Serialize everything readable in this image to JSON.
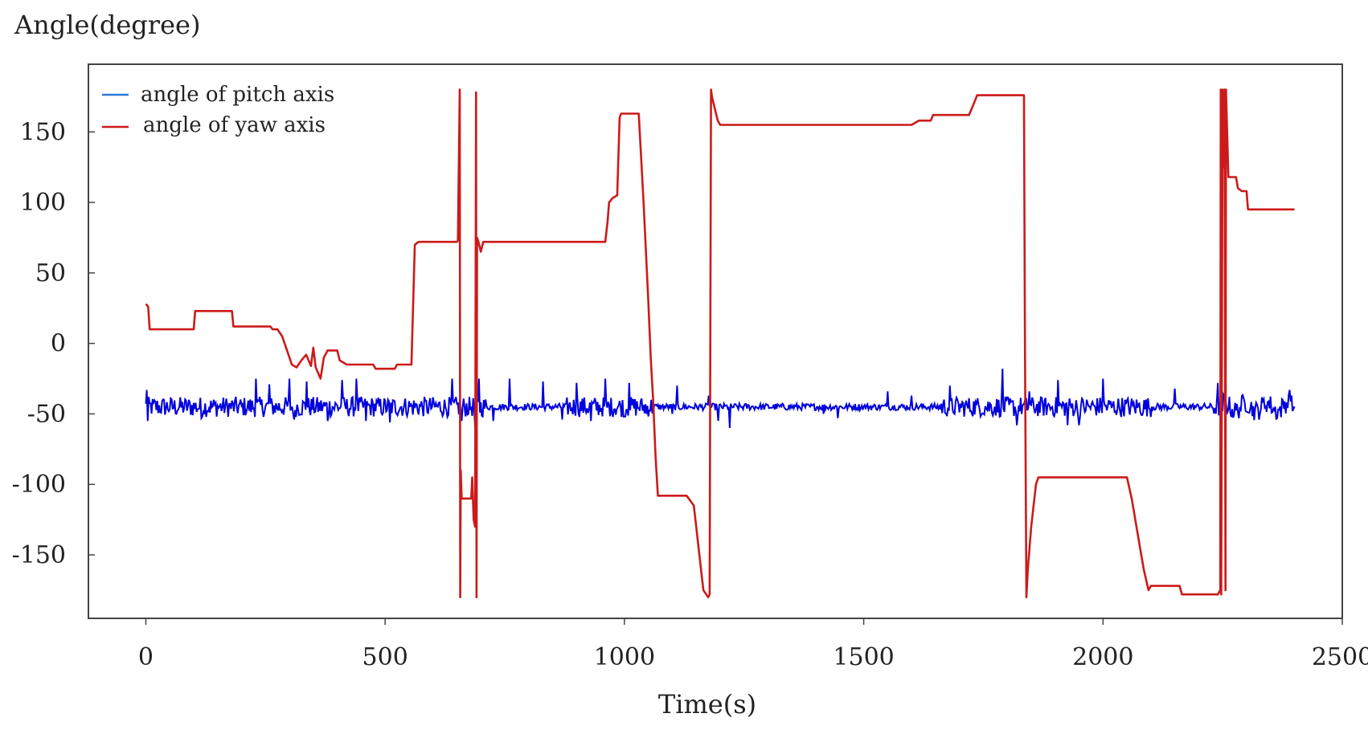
{
  "chart_data": {
    "type": "line",
    "ylabel": "Angle(degree)",
    "xlabel": "Time(s)",
    "xlim": [
      -120,
      2500
    ],
    "ylim": [
      -195,
      198
    ],
    "x_ticks": [
      0,
      500,
      1000,
      1500,
      2000,
      2500
    ],
    "y_ticks": [
      150,
      100,
      50,
      0,
      -50,
      -100,
      -150
    ],
    "x_tick_labels": [
      "0",
      "500",
      "1000",
      "1500",
      "2000",
      "2500"
    ],
    "y_tick_labels": [
      "150",
      "100",
      "50",
      "0",
      "-50",
      "-100",
      "-150"
    ],
    "legend_position": "top-left",
    "grid": false,
    "series": [
      {
        "name": "angle of pitch axis",
        "color": "#0000dd",
        "legend_color": "#2a7ad6",
        "base_value": -45,
        "noise_amplitude": 4,
        "spikes": [
          [
            2,
            -33
          ],
          [
            3,
            -55
          ],
          [
            115,
            -53
          ],
          [
            230,
            -25
          ],
          [
            258,
            -29
          ],
          [
            300,
            -25
          ],
          [
            310,
            -54
          ],
          [
            335,
            -27
          ],
          [
            380,
            -55
          ],
          [
            410,
            -26
          ],
          [
            440,
            -25
          ],
          [
            460,
            -55
          ],
          [
            510,
            -56
          ],
          [
            640,
            -25
          ],
          [
            660,
            -55
          ],
          [
            688,
            -60
          ],
          [
            695,
            -25
          ],
          [
            725,
            -55
          ],
          [
            760,
            -25
          ],
          [
            830,
            -27
          ],
          [
            870,
            -54
          ],
          [
            900,
            -28
          ],
          [
            930,
            -55
          ],
          [
            960,
            -25
          ],
          [
            1000,
            -52
          ],
          [
            1010,
            -28
          ],
          [
            1045,
            -50
          ],
          [
            1100,
            -50
          ],
          [
            1110,
            -30
          ],
          [
            1175,
            -37
          ],
          [
            1195,
            -55
          ],
          [
            1220,
            -60
          ],
          [
            1415,
            -50
          ],
          [
            1445,
            -53
          ],
          [
            1550,
            -34
          ],
          [
            1600,
            -37
          ],
          [
            1680,
            -30
          ],
          [
            1790,
            -18
          ],
          [
            1820,
            -58
          ],
          [
            1845,
            -34
          ],
          [
            1905,
            -26
          ],
          [
            1925,
            -58
          ],
          [
            1950,
            -58
          ],
          [
            2000,
            -25
          ],
          [
            2150,
            -32
          ],
          [
            2240,
            -28
          ],
          [
            2390,
            -33
          ]
        ],
        "noisy_ranges": [
          [
            0,
            710
          ],
          [
            880,
            1060
          ],
          [
            1660,
            2100
          ],
          [
            2230,
            2400
          ]
        ],
        "end_x": 2400,
        "end_value": -45
      },
      {
        "name": "angle of yaw axis",
        "color": "#cc1a1a",
        "points": [
          [
            0,
            28
          ],
          [
            5,
            26
          ],
          [
            8,
            10
          ],
          [
            95,
            10
          ],
          [
            100,
            10
          ],
          [
            103,
            23
          ],
          [
            180,
            23
          ],
          [
            183,
            12
          ],
          [
            260,
            12
          ],
          [
            265,
            10
          ],
          [
            275,
            10
          ],
          [
            285,
            5
          ],
          [
            295,
            -5
          ],
          [
            300,
            -10
          ],
          [
            305,
            -15
          ],
          [
            315,
            -17
          ],
          [
            325,
            -12
          ],
          [
            335,
            -8
          ],
          [
            345,
            -16
          ],
          [
            350,
            -3
          ],
          [
            355,
            -17
          ],
          [
            365,
            -25
          ],
          [
            372,
            -10
          ],
          [
            380,
            -5
          ],
          [
            400,
            -5
          ],
          [
            405,
            -12
          ],
          [
            420,
            -15
          ],
          [
            475,
            -15
          ],
          [
            480,
            -18
          ],
          [
            520,
            -18
          ],
          [
            525,
            -15
          ],
          [
            555,
            -15
          ],
          [
            562,
            70
          ],
          [
            570,
            72
          ],
          [
            585,
            72
          ],
          [
            650,
            72
          ],
          [
            652,
            73
          ],
          [
            656,
            180
          ],
          [
            657,
            -180
          ],
          [
            658,
            -90
          ],
          [
            660,
            -110
          ],
          [
            680,
            -110
          ],
          [
            682,
            -95
          ],
          [
            685,
            -125
          ],
          [
            688,
            -130
          ],
          [
            690,
            178
          ],
          [
            691,
            -180
          ],
          [
            692,
            75
          ],
          [
            695,
            72
          ],
          [
            700,
            65
          ],
          [
            705,
            72
          ],
          [
            960,
            72
          ],
          [
            965,
            87
          ],
          [
            968,
            100
          ],
          [
            975,
            103
          ],
          [
            985,
            105
          ],
          [
            990,
            160
          ],
          [
            993,
            163
          ],
          [
            1030,
            163
          ],
          [
            1040,
            100
          ],
          [
            1050,
            30
          ],
          [
            1055,
            -10
          ],
          [
            1060,
            -40
          ],
          [
            1065,
            -80
          ],
          [
            1070,
            -108
          ],
          [
            1130,
            -108
          ],
          [
            1145,
            -115
          ],
          [
            1150,
            -130
          ],
          [
            1160,
            -160
          ],
          [
            1165,
            -175
          ],
          [
            1175,
            -180
          ],
          [
            1178,
            -178
          ],
          [
            1181,
            180
          ],
          [
            1183,
            175
          ],
          [
            1190,
            165
          ],
          [
            1195,
            158
          ],
          [
            1200,
            155
          ],
          [
            1600,
            155
          ],
          [
            1615,
            158
          ],
          [
            1640,
            158
          ],
          [
            1645,
            162
          ],
          [
            1720,
            162
          ],
          [
            1730,
            170
          ],
          [
            1737,
            176
          ],
          [
            1745,
            176
          ],
          [
            1835,
            176
          ],
          [
            1837,
            0
          ],
          [
            1840,
            -180
          ],
          [
            1843,
            -160
          ],
          [
            1850,
            -130
          ],
          [
            1860,
            -100
          ],
          [
            1865,
            -95
          ],
          [
            2050,
            -95
          ],
          [
            2060,
            -110
          ],
          [
            2080,
            -150
          ],
          [
            2085,
            -160
          ],
          [
            2095,
            -175
          ],
          [
            2100,
            -172
          ],
          [
            2160,
            -172
          ],
          [
            2165,
            -178
          ],
          [
            2240,
            -178
          ],
          [
            2245,
            -175
          ],
          [
            2246,
            180
          ],
          [
            2247,
            -178
          ],
          [
            2250,
            180
          ],
          [
            2252,
            125
          ],
          [
            2254,
            180
          ],
          [
            2256,
            -175
          ],
          [
            2257,
            180
          ],
          [
            2262,
            118
          ],
          [
            2278,
            118
          ],
          [
            2282,
            110
          ],
          [
            2290,
            108
          ],
          [
            2300,
            108
          ],
          [
            2303,
            95
          ],
          [
            2310,
            95
          ],
          [
            2400,
            95
          ]
        ]
      }
    ]
  }
}
